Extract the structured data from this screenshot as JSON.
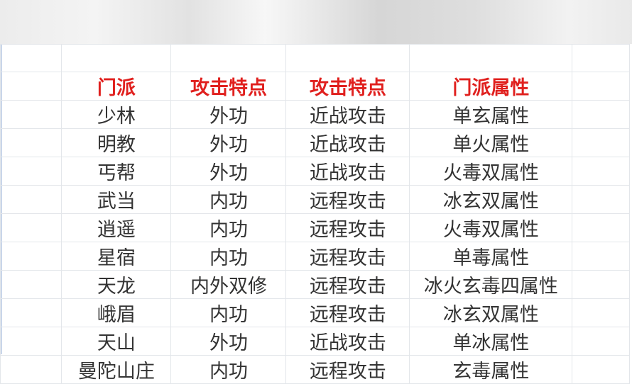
{
  "header": [
    "门派",
    "攻击特点",
    "攻击特点",
    "门派属性"
  ],
  "rows": [
    [
      "少林",
      "外功",
      "近战攻击",
      "单玄属性"
    ],
    [
      "明教",
      "外功",
      "近战攻击",
      "单火属性"
    ],
    [
      "丐帮",
      "外功",
      "近战攻击",
      "火毒双属性"
    ],
    [
      "武当",
      "内功",
      "远程攻击",
      "冰玄双属性"
    ],
    [
      "逍遥",
      "内功",
      "远程攻击",
      "火毒双属性"
    ],
    [
      "星宿",
      "内功",
      "远程攻击",
      "单毒属性"
    ],
    [
      "天龙",
      "内外双修",
      "远程攻击",
      "冰火玄毒四属性"
    ],
    [
      "峨眉",
      "内功",
      "远程攻击",
      "冰玄双属性"
    ],
    [
      "天山",
      "外功",
      "近战攻击",
      "单冰属性"
    ],
    [
      "曼陀山庄",
      "内功",
      "远程攻击",
      "玄毒属性"
    ]
  ],
  "colors": {
    "header_text": "#e0201e",
    "cell_text": "#333333",
    "grid": "#e3e6ea"
  }
}
